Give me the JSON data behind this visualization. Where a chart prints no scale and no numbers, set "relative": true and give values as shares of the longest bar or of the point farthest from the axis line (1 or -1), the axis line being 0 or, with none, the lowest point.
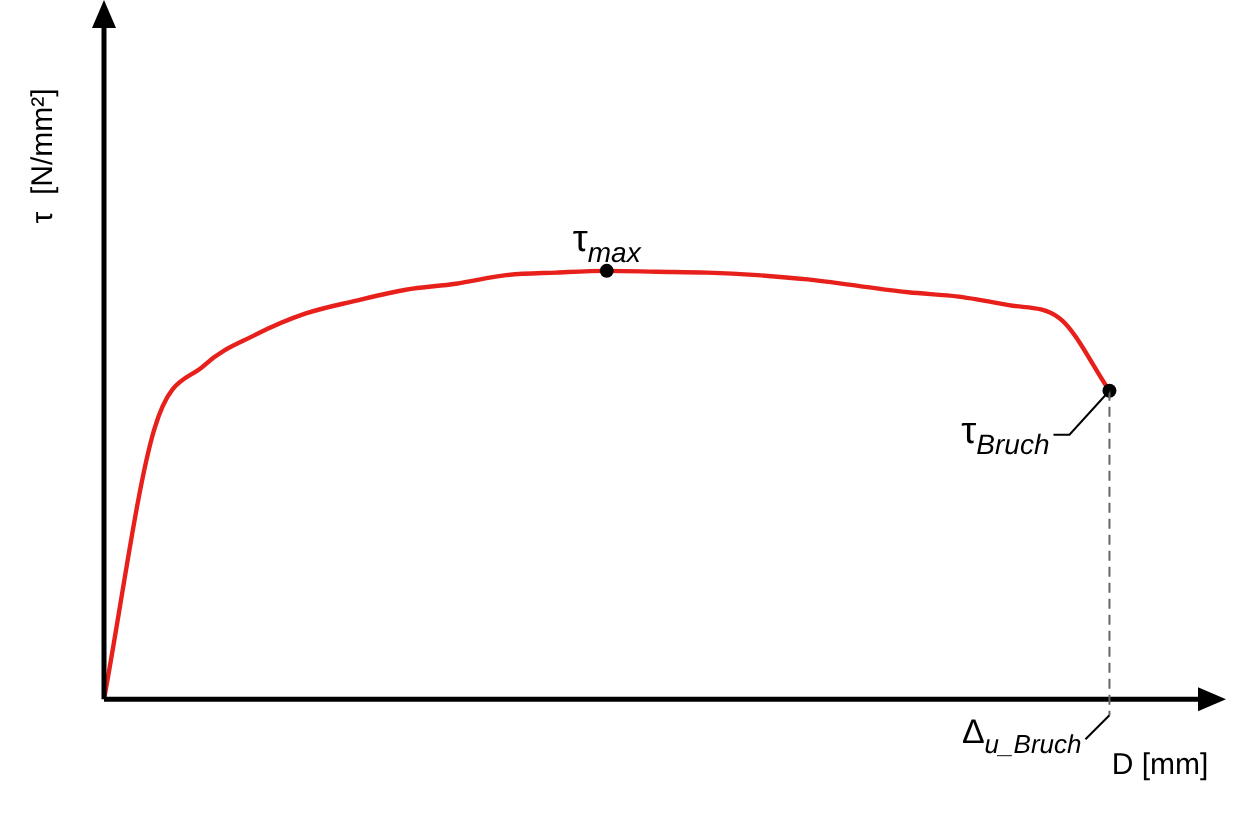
{
  "chart_data": {
    "type": "line",
    "relative": true,
    "xlabel": "D [mm]",
    "ylabel": "τ  [N/mm²]",
    "categories": [
      null,
      null,
      null,
      null,
      null,
      null,
      null,
      null,
      null,
      null,
      null,
      null,
      null,
      null,
      null,
      null,
      null,
      null,
      null,
      null,
      null,
      null,
      null
    ],
    "series": [
      {
        "color": "#e8201c",
        "values": [
          0,
          0.63,
          0.78,
          0.85,
          0.9,
          0.93,
          0.956,
          0.97,
          0.99,
          0.996,
          1,
          0.998,
          0.996,
          0.99,
          0.98,
          0.965,
          0.95,
          0.94,
          0.92,
          0.89,
          0.72,
          null,
          null
        ]
      }
    ],
    "marker": "none",
    "legend": false,
    "annotations": [
      "τ$_{max}$",
      "τ$_{Bruch}$",
      "Δ$_{u_Bruch}$"
    ]
  }
}
